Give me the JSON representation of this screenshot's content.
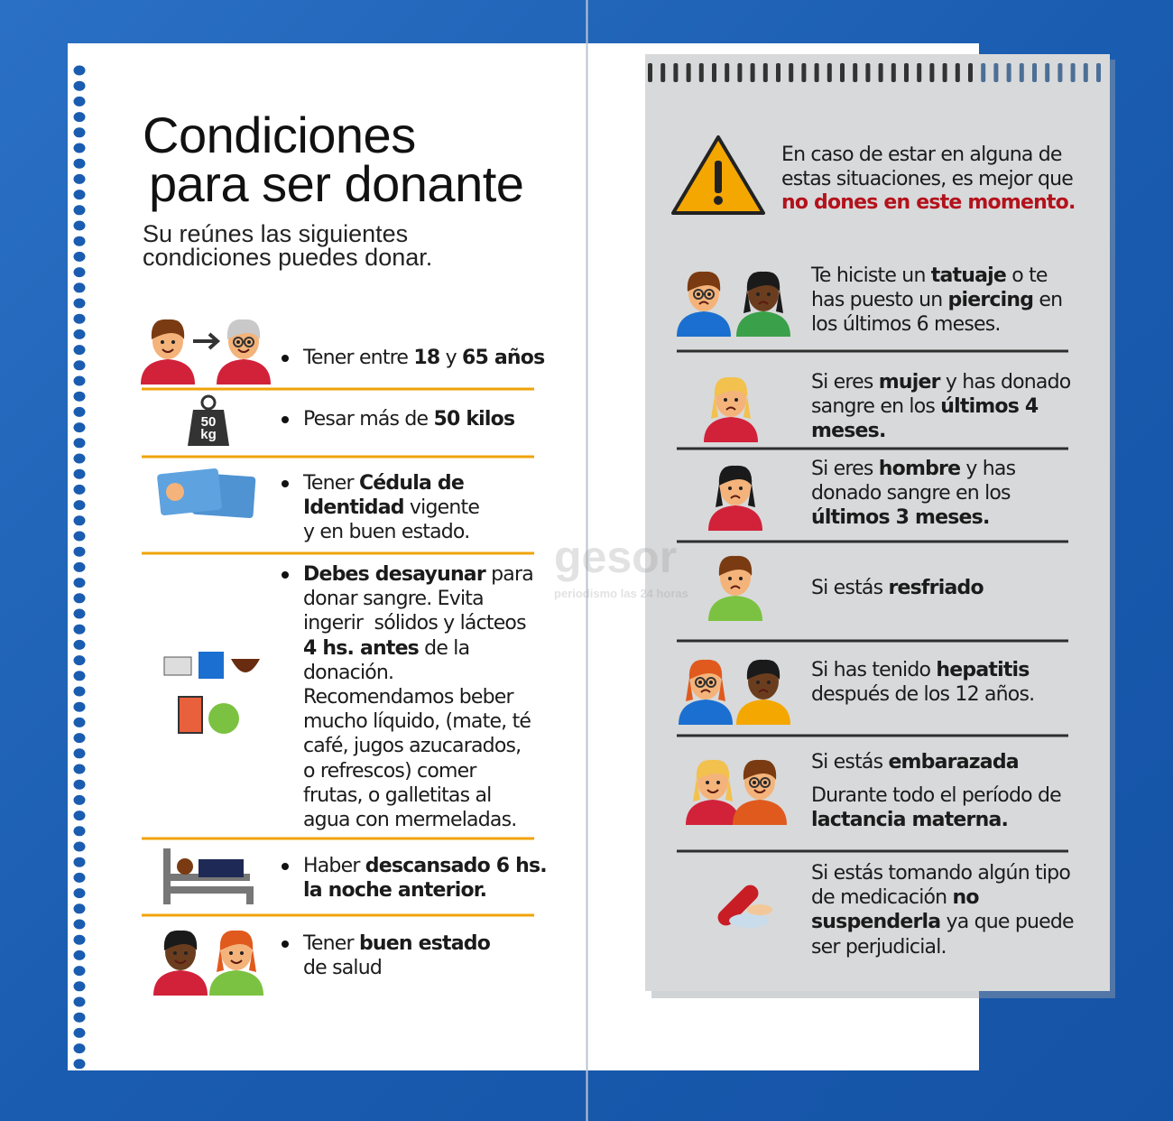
{
  "left": {
    "title": [
      "Condiciones",
      "para ser donante"
    ],
    "subtitle": [
      "Su reúnes las siguientes",
      "condiciones puedes donar."
    ],
    "weight_icon": [
      "50",
      "kg"
    ],
    "items": [
      {
        "lines": [
          [
            "Tener entre ",
            {
              "bold": "18"
            },
            " y ",
            {
              "bold": "65 años"
            }
          ]
        ]
      },
      {
        "lines": [
          [
            "Pesar más de ",
            {
              "bold": "50 kilos"
            }
          ]
        ]
      },
      {
        "lines": [
          [
            "Tener ",
            {
              "bold": "Cédula de"
            }
          ],
          [
            {
              "bold": "Identidad"
            },
            " vigente"
          ],
          [
            "y en buen estado."
          ]
        ]
      },
      {
        "lines": [
          [
            {
              "bold": "Debes desayunar"
            },
            " para"
          ],
          [
            "donar sangre. Evita"
          ],
          [
            "ingerir  sólidos y lácteos"
          ],
          [
            {
              "bold": "4 hs. antes"
            },
            " de la"
          ],
          [
            "donación."
          ],
          [
            "Recomendamos beber"
          ],
          [
            "mucho líquido, (mate, té"
          ],
          [
            "café, jugos azucarados,"
          ],
          [
            "o refrescos) comer"
          ],
          [
            "frutas, o galletitas al"
          ],
          [
            "agua con mermeladas."
          ]
        ]
      },
      {
        "lines": [
          [
            "Haber ",
            {
              "bold": "descansado 6 hs."
            }
          ],
          [
            {
              "bold": "la noche anterior."
            }
          ]
        ]
      },
      {
        "lines": [
          [
            "Tener ",
            {
              "bold": "buen estado"
            }
          ],
          [
            "de salud"
          ]
        ]
      }
    ]
  },
  "right": {
    "warning": [
      [
        "En caso de estar en alguna de"
      ],
      [
        "estas situaciones, es mejor que"
      ],
      [
        {
          "alert": "no dones en este momento."
        }
      ]
    ],
    "items": [
      {
        "lines": [
          [
            "Te hiciste un ",
            {
              "bold": "tatuaje"
            },
            " o te"
          ],
          [
            "has puesto un ",
            {
              "bold": "piercing"
            },
            " en"
          ],
          [
            "los últimos 6 meses."
          ]
        ]
      },
      {
        "lines": [
          [
            "Si eres ",
            {
              "bold": "mujer"
            },
            " y has donado"
          ],
          [
            "sangre en los ",
            {
              "bold": "últimos 4"
            }
          ],
          [
            {
              "bold": "meses."
            }
          ]
        ]
      },
      {
        "lines": [
          [
            "Si eres ",
            {
              "bold": "hombre"
            },
            " y has"
          ],
          [
            "donado sangre en los"
          ],
          [
            {
              "bold": "últimos 3 meses."
            }
          ]
        ]
      },
      {
        "lines": [
          [
            "Si estás ",
            {
              "bold": "resfriado"
            }
          ]
        ]
      },
      {
        "lines": [
          [
            "Si has tenido ",
            {
              "bold": "hepatitis"
            }
          ],
          [
            "después de los 12 años."
          ]
        ]
      },
      {
        "lines": [
          [
            "Si estás ",
            {
              "bold": "embarazada"
            }
          ],
          [
            "Durante todo el período de"
          ],
          [
            {
              "bold": "lactancia materna."
            }
          ]
        ]
      },
      {
        "lines": [
          [
            "Si estás tomando algún tipo"
          ],
          [
            "de medicación ",
            {
              "bold": "no"
            }
          ],
          [
            {
              "bold": "suspenderla"
            },
            " ya que puede"
          ],
          [
            "ser perjudicial."
          ]
        ]
      }
    ]
  },
  "watermark": {
    "brand": "gesor",
    "tagline": "periodismo las 24 horas"
  }
}
